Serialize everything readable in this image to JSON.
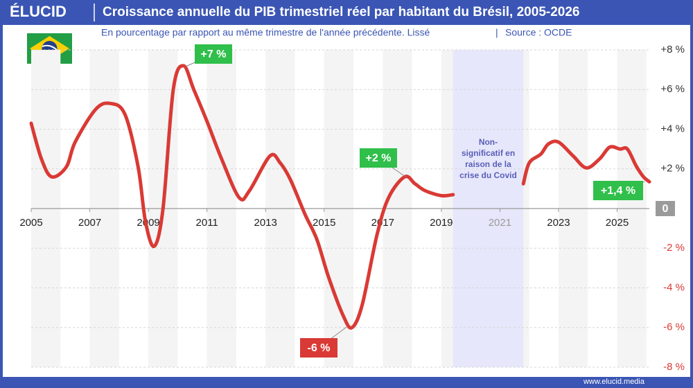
{
  "brand": "ÉLUCID",
  "footer": "www.elucid.media",
  "chart_data": {
    "type": "line",
    "title": "Croissance annuelle du PIB trimestriel réel par habitant du Brésil, 2005-2026",
    "subtitle": "En pourcentage par rapport au même trimestre de l'année précédente. Lissé",
    "source": "Source : OCDE",
    "x": [
      2005.0,
      2005.35,
      2005.7,
      2006.2,
      2006.5,
      2007.2,
      2007.7,
      2008.2,
      2008.65,
      2008.9,
      2009.2,
      2009.5,
      2009.85,
      2010.2,
      2010.55,
      2011.0,
      2011.5,
      2012.1,
      2012.45,
      2013.15,
      2013.5,
      2013.85,
      2014.35,
      2014.75,
      2015.15,
      2015.65,
      2015.95,
      2016.3,
      2016.8,
      2017.2,
      2017.75,
      2018.1,
      2018.45,
      2019.0,
      2019.4,
      2020.6,
      2021.8,
      2022.0,
      2022.4,
      2022.65,
      2023.0,
      2023.5,
      2023.95,
      2024.4,
      2024.75,
      2025.1,
      2025.35,
      2025.65,
      2025.9,
      2026.1
    ],
    "series": [
      {
        "color": "#d93a35",
        "values": [
          4.3,
          2.5,
          1.6,
          2.1,
          3.35,
          5.0,
          5.3,
          4.75,
          2.1,
          -0.65,
          -1.9,
          0,
          6.0,
          7.2,
          6.0,
          4.4,
          2.5,
          0.55,
          0.9,
          2.65,
          2.3,
          1.45,
          -0.3,
          -1.55,
          -3.45,
          -5.4,
          -6.0,
          -4.85,
          -1.35,
          0.55,
          1.6,
          1.25,
          0.9,
          0.65,
          0.7,
          null,
          1.25,
          2.3,
          2.75,
          3.25,
          3.35,
          2.65,
          2.05,
          2.5,
          3.1,
          3.0,
          3.0,
          2.15,
          1.6,
          1.35
        ]
      }
    ],
    "xlim": [
      2005,
      2026.1
    ],
    "xticks": [
      2005,
      2007,
      2009,
      2011,
      2013,
      2015,
      2017,
      2019,
      2021,
      2023,
      2025
    ],
    "ylim": [
      -8,
      8
    ],
    "yticks": [
      {
        "value": -8,
        "label": "-8 %"
      },
      {
        "value": -6,
        "label": "-6 %"
      },
      {
        "value": -4,
        "label": "-4 %"
      },
      {
        "value": -2,
        "label": "-2 %"
      },
      0,
      {
        "value": 2,
        "label": "+2 %"
      },
      {
        "value": 4,
        "label": "+4 %"
      },
      {
        "value": 6,
        "label": "+6 %"
      },
      {
        "value": 8,
        "label": "+8 %"
      }
    ],
    "grid": true,
    "shaded_range": [
      2019.4,
      2021.8
    ],
    "shaded_note": [
      "Non-",
      "significatif en",
      "raison de la",
      "crise du Covid"
    ],
    "annotations": [
      {
        "text": "+7 %",
        "color": "#2fbf4a"
      },
      {
        "text": "+2 %",
        "color": "#2fbf4a"
      },
      {
        "text": "-6 %",
        "color": "#d93a35"
      },
      {
        "text": "+1,4 %",
        "color": "#2fbf4a"
      }
    ]
  }
}
